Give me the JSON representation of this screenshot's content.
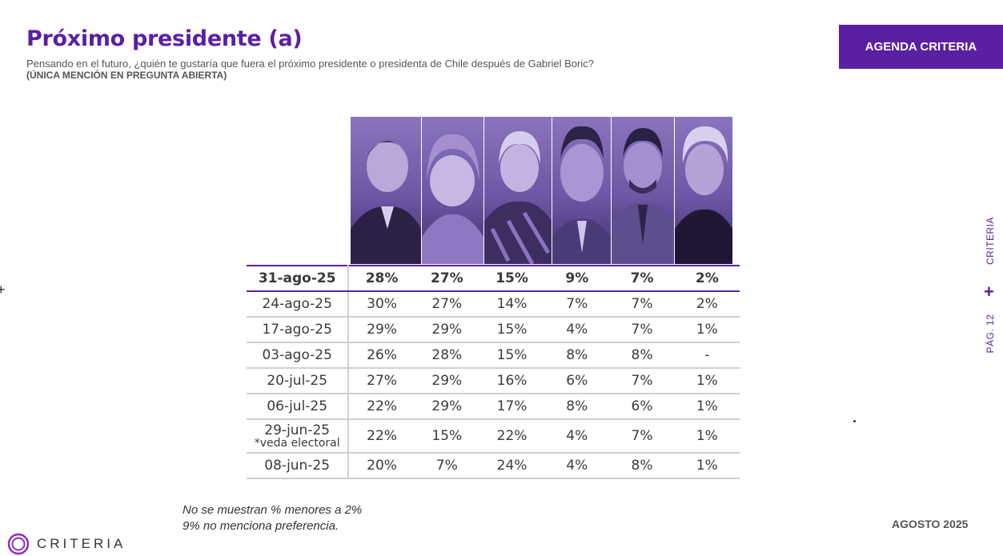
{
  "header": {
    "title": "Próximo presidente (a)",
    "subtitle": "Pensando en el futuro, ¿quién te gustaría que fuera el próximo presidente o presidenta de Chile después de Gabriel Boric?",
    "subtitle_note": "(ÚNICA MENCIÓN EN PREGUNTA ABIERTA)"
  },
  "agenda_badge": "AGENDA CRITERIA",
  "side": {
    "brand": "CRITERIA",
    "page": "PÁG. 12"
  },
  "footer": {
    "note1": "No se muestran % menores a 2%",
    "note2": "9% no menciona preferencia.",
    "brand": "CRITERIA",
    "month": "AGOSTO 2025"
  },
  "colors": {
    "accent": "#5b1fa3",
    "grid": "#cfcfcf",
    "text": "#3a3a3a"
  },
  "chart_data": {
    "type": "table",
    "columns": [
      "candidate-photo-1",
      "candidate-photo-2",
      "candidate-photo-3",
      "candidate-photo-4",
      "candidate-photo-5",
      "candidate-photo-6"
    ],
    "rows": [
      {
        "date": "31-ago-25",
        "note": "",
        "values": [
          "28%",
          "27%",
          "15%",
          "9%",
          "7%",
          "2%"
        ]
      },
      {
        "date": "24-ago-25",
        "note": "",
        "values": [
          "30%",
          "27%",
          "14%",
          "7%",
          "7%",
          "2%"
        ]
      },
      {
        "date": "17-ago-25",
        "note": "",
        "values": [
          "29%",
          "29%",
          "15%",
          "4%",
          "7%",
          "1%"
        ]
      },
      {
        "date": "03-ago-25",
        "note": "",
        "values": [
          "26%",
          "28%",
          "15%",
          "8%",
          "8%",
          "-"
        ]
      },
      {
        "date": "20-jul-25",
        "note": "",
        "values": [
          "27%",
          "29%",
          "16%",
          "6%",
          "7%",
          "1%"
        ]
      },
      {
        "date": "06-jul-25",
        "note": "",
        "values": [
          "22%",
          "29%",
          "17%",
          "8%",
          "6%",
          "1%"
        ]
      },
      {
        "date": "29-jun-25",
        "note": "*veda electoral",
        "values": [
          "22%",
          "15%",
          "22%",
          "4%",
          "7%",
          "1%"
        ]
      },
      {
        "date": "08-jun-25",
        "note": "",
        "values": [
          "20%",
          "7%",
          "24%",
          "4%",
          "8%",
          "1%"
        ]
      }
    ]
  }
}
